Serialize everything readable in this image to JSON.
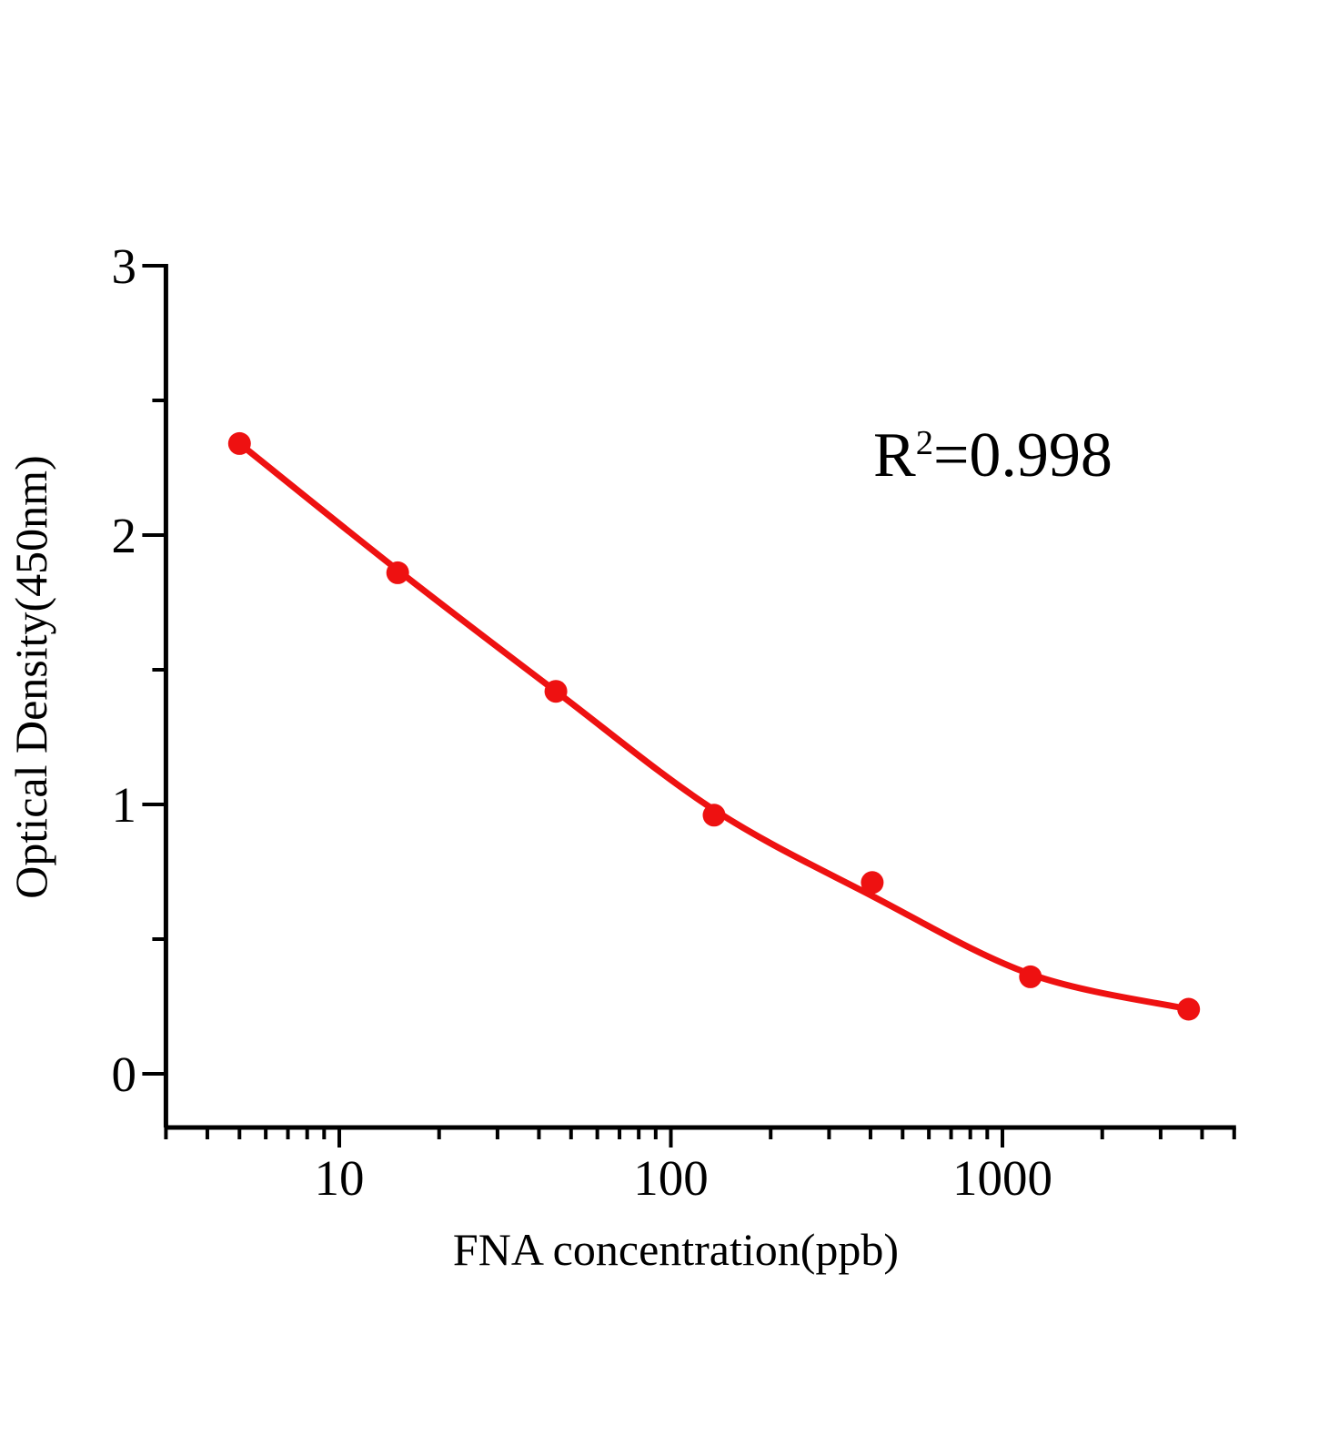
{
  "chart_data": {
    "type": "scatter",
    "title": "",
    "xlabel": "FNA concentration(ppb)",
    "ylabel": "Optical Density(450nm)",
    "x_scale": "log",
    "x_range": [
      3,
      5000
    ],
    "y_range": [
      0,
      3
    ],
    "grid": false,
    "legend": false,
    "x_major_ticks": [
      {
        "value": 10,
        "label": "10"
      },
      {
        "value": 100,
        "label": "100"
      },
      {
        "value": 1000,
        "label": "1000"
      }
    ],
    "x_minor_ticks": [
      3,
      4,
      5,
      6,
      7,
      8,
      9,
      20,
      30,
      40,
      50,
      60,
      70,
      80,
      90,
      200,
      300,
      400,
      500,
      600,
      700,
      800,
      900,
      2000,
      3000,
      4000,
      5000
    ],
    "y_major_ticks": [
      {
        "value": 0,
        "label": "0"
      },
      {
        "value": 1,
        "label": "1"
      },
      {
        "value": 2,
        "label": "2"
      },
      {
        "value": 3,
        "label": "3"
      }
    ],
    "y_minor_ticks": [
      0.5,
      1.5,
      2.5
    ],
    "annotation": {
      "base": "R",
      "sup": "2",
      "rest": "=0.998"
    },
    "series": [
      {
        "name": "standard-points",
        "type": "scatter",
        "marker": "circle",
        "color": "#ee1111",
        "x": [
          5,
          15,
          45,
          135,
          405,
          1215,
          3645
        ],
        "y": [
          2.34,
          1.86,
          1.42,
          0.96,
          0.71,
          0.36,
          0.24
        ]
      },
      {
        "name": "fitted-curve",
        "type": "line",
        "color": "#ee1111",
        "x": [
          5,
          15,
          45,
          135,
          405,
          1215,
          3645
        ],
        "y": [
          2.34,
          1.87,
          1.42,
          0.98,
          0.66,
          0.37,
          0.24
        ]
      }
    ]
  },
  "style": {
    "background": "#ffffff",
    "axis_color": "#000000",
    "text_color": "#000000",
    "accent": "#ee1111"
  }
}
